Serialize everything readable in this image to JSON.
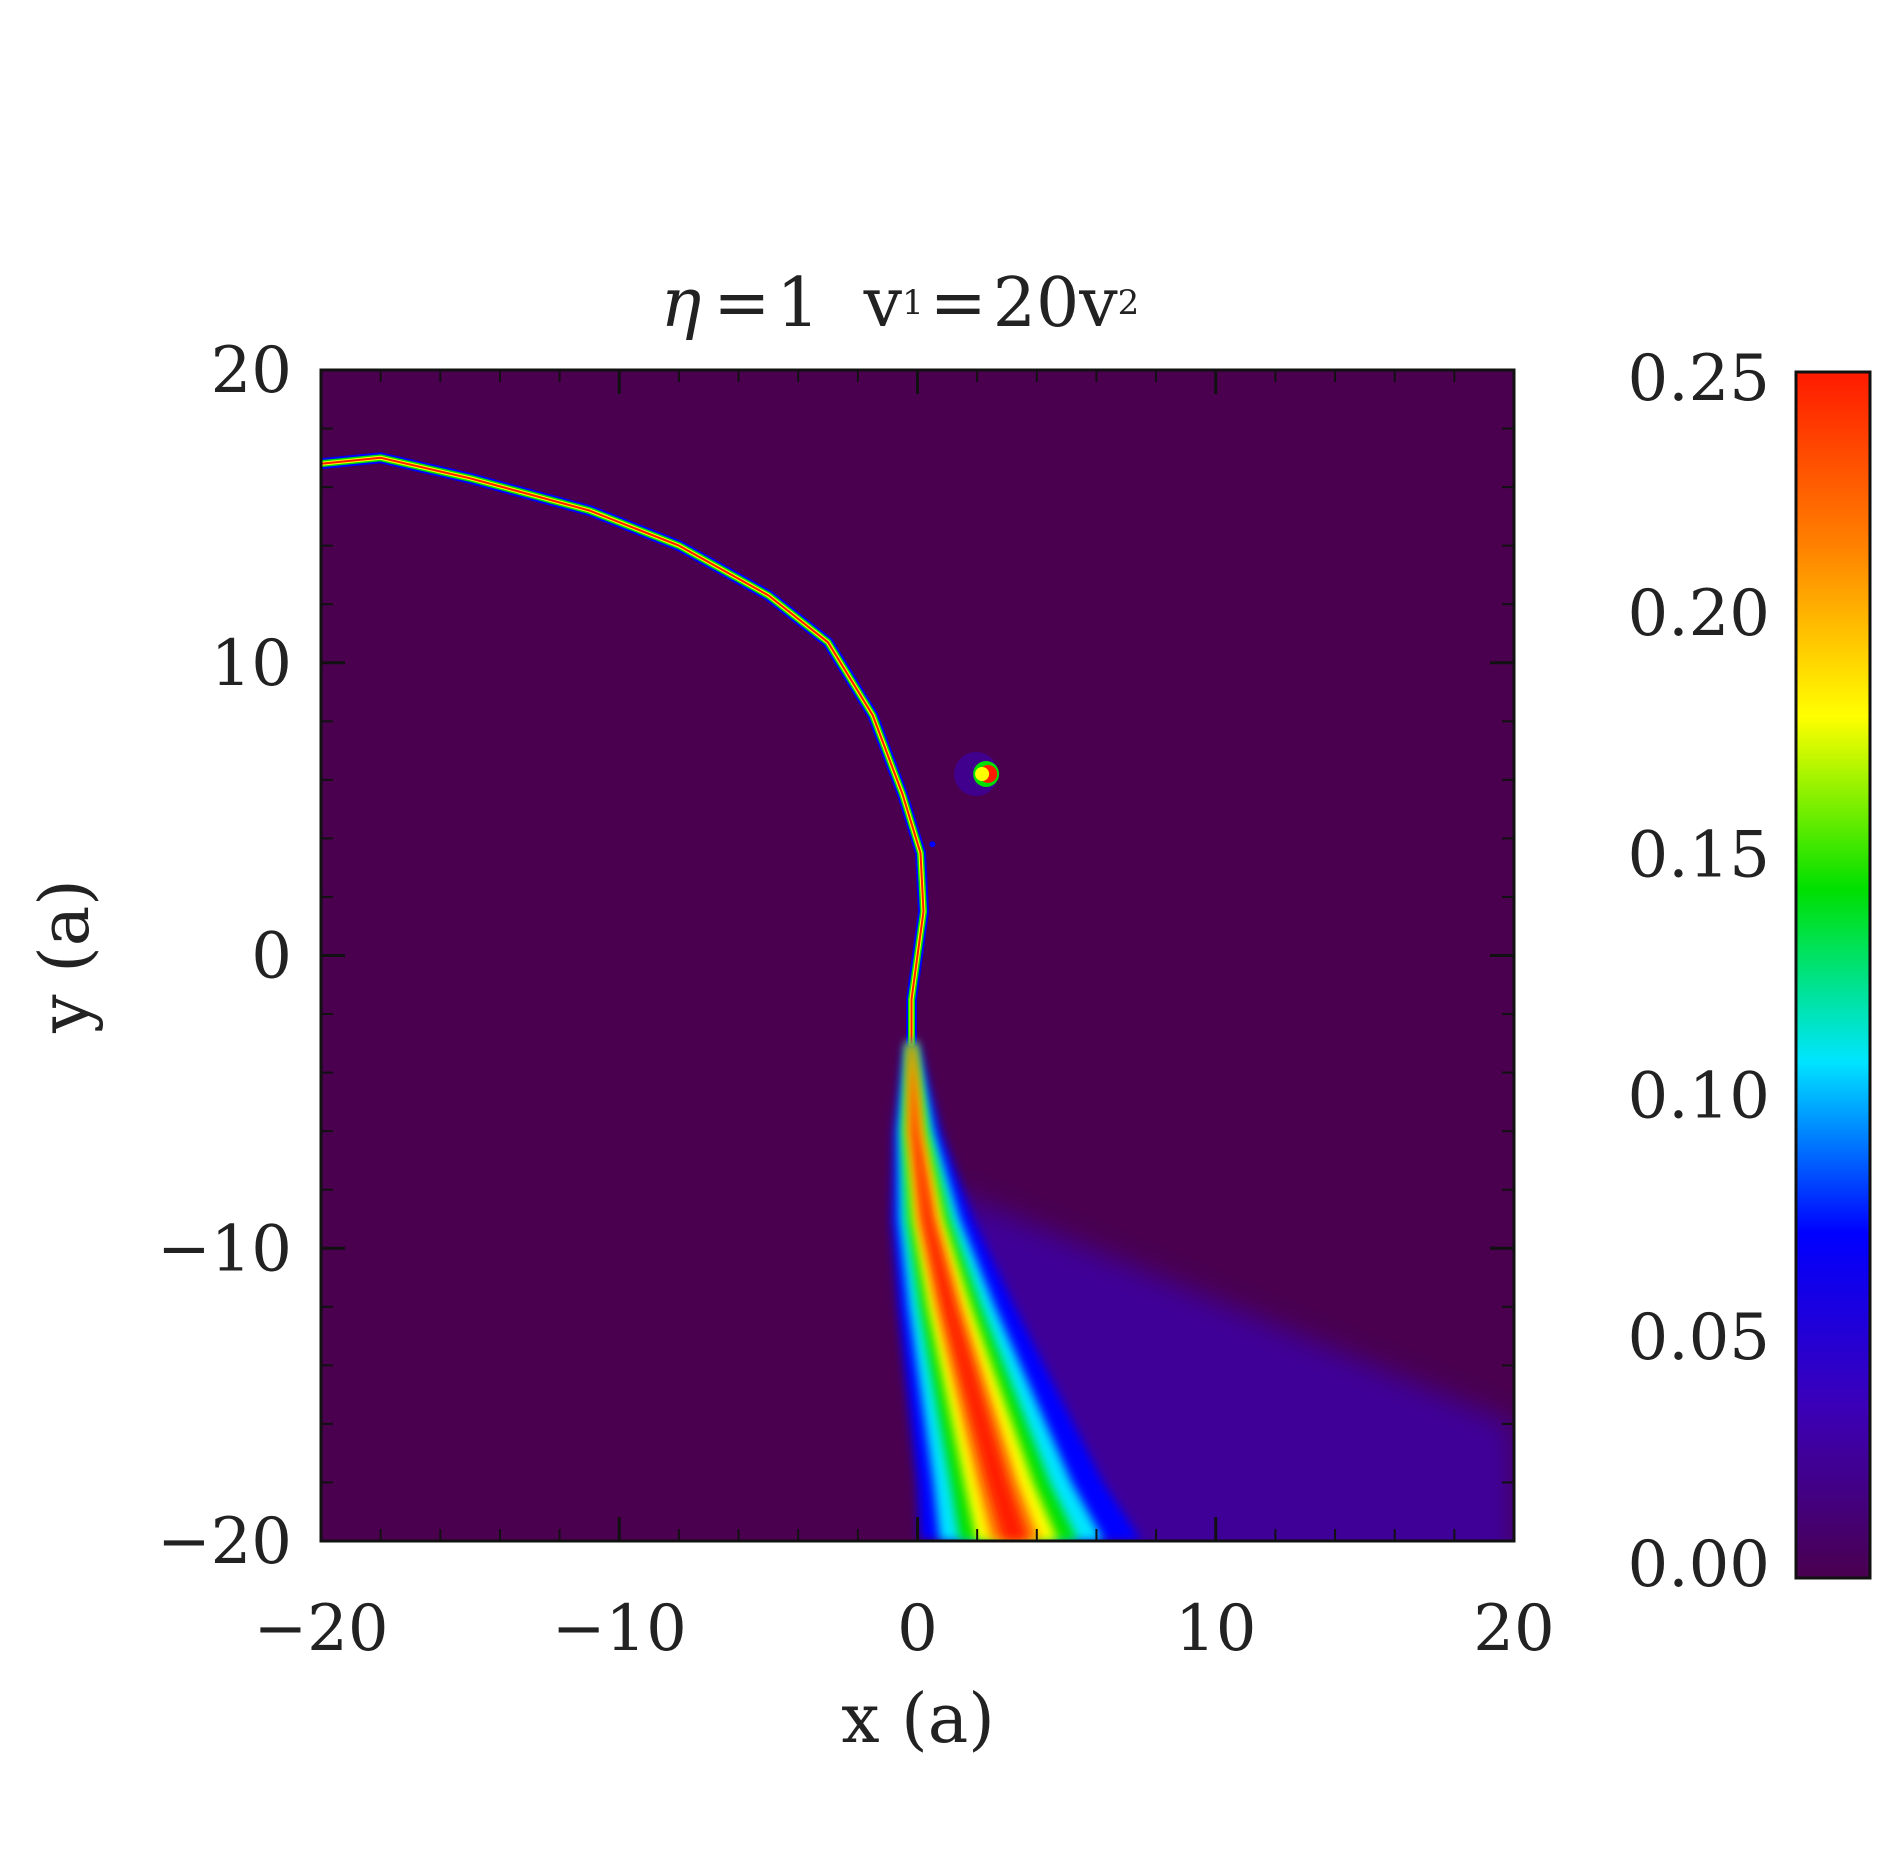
{
  "title": {
    "eta_symbol": "η",
    "eta_value": "1",
    "v1": "v",
    "v1_sub": "1",
    "v1_rhs": "20v",
    "v2_sub": "2",
    "equals": "="
  },
  "chart_data": {
    "type": "heatmap",
    "title": "η = 1   v₁ = 20v₂",
    "xlabel": "x (a)",
    "ylabel": "y (a)",
    "xlim": [
      -20,
      20
    ],
    "ylim": [
      -20,
      20
    ],
    "x_ticks": [
      -20,
      -10,
      0,
      10,
      20
    ],
    "x_tick_labels": [
      "−20",
      "−10",
      "0",
      "10",
      "20"
    ],
    "y_ticks": [
      -20,
      -10,
      0,
      10,
      20
    ],
    "y_tick_labels": [
      "−20",
      "−10",
      "0",
      "10",
      "20"
    ],
    "background_value": 0.0,
    "colorbar": {
      "min": 0.0,
      "max": 0.25,
      "ticks": [
        0.0,
        0.05,
        0.1,
        0.15,
        0.2,
        0.25
      ],
      "tick_labels": [
        "0.00",
        "0.05",
        "0.10",
        "0.15",
        "0.20",
        "0.25"
      ],
      "colormap": [
        "#4a004f",
        "#3b00b8",
        "#0000ff",
        "#00e5ff",
        "#00e000",
        "#ffff00",
        "#ff8000",
        "#ff1a00"
      ]
    },
    "features": [
      {
        "name": "upper shock ridge",
        "peak_value": 0.25,
        "points": [
          [
            -20,
            16.8
          ],
          [
            -18,
            17.0
          ],
          [
            -15,
            16.3
          ],
          [
            -11,
            15.2
          ],
          [
            -8,
            14.0
          ],
          [
            -5,
            12.3
          ],
          [
            -3,
            10.7
          ],
          [
            -1.5,
            8.2
          ],
          [
            -0.5,
            5.5
          ],
          [
            0.1,
            3.5
          ],
          [
            0.2,
            1.5
          ],
          [
            0.0,
            0.0
          ],
          [
            -0.2,
            -1.5
          ],
          [
            -0.2,
            -3.0
          ]
        ]
      },
      {
        "name": "lower tail",
        "peak_value": 0.25,
        "points": [
          [
            -0.2,
            -3.0
          ],
          [
            -0.1,
            -6.0
          ],
          [
            0.3,
            -9.0
          ],
          [
            1.0,
            -12.0
          ],
          [
            1.8,
            -15.0
          ],
          [
            2.6,
            -18.0
          ],
          [
            3.2,
            -20.0
          ]
        ]
      },
      {
        "name": "companion crescent",
        "peak_value": 0.25,
        "center": [
          2.3,
          6.2
        ]
      }
    ]
  }
}
